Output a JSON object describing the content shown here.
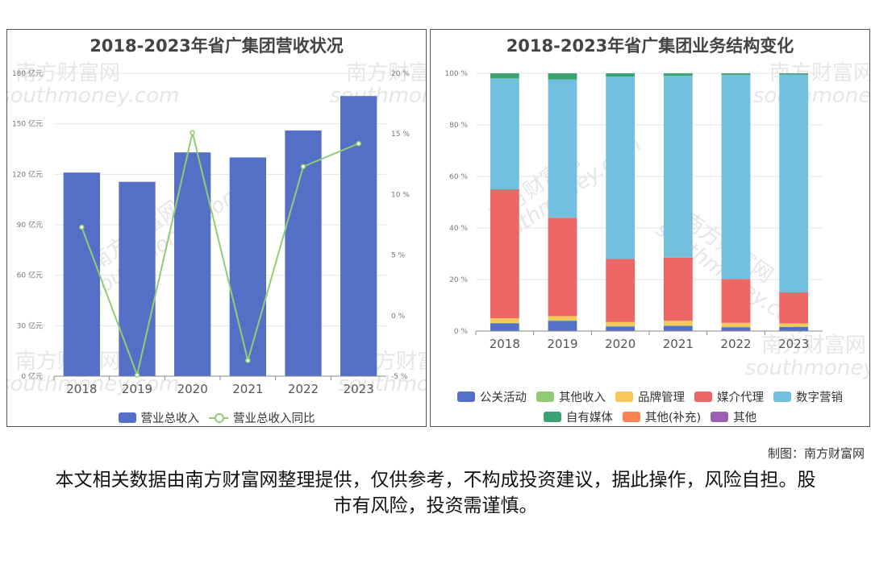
{
  "watermark": {
    "cn": "南方财富网",
    "en": "southmoney.com"
  },
  "credit": "制图：南方财富网",
  "disclaimer": "本文相关数据由南方财富网整理提供，仅供参考，不构成投资建议，据此操作，风险自担。股市有风险，投资需谨慎。",
  "chart_data": [
    {
      "type": "bar",
      "title": "2018-2023年省广集团营收状况",
      "categories": [
        "2018",
        "2019",
        "2020",
        "2021",
        "2022",
        "2023"
      ],
      "series": [
        {
          "name": "营业总收入",
          "type": "bar",
          "axis": "left",
          "color": "#5470c6",
          "values": [
            121,
            115.5,
            133,
            130,
            146,
            166.5
          ]
        },
        {
          "name": "营业总收入同比",
          "type": "line",
          "axis": "right",
          "color": "#91cc75",
          "values": [
            7.3,
            -4.9,
            15.1,
            -3.7,
            12.3,
            14.2
          ]
        }
      ],
      "y_left": {
        "min": 0,
        "max": 180,
        "ticks": [
          0,
          30,
          60,
          90,
          120,
          150,
          180
        ],
        "unit": "亿元"
      },
      "y_right": {
        "min": -5,
        "max": 20,
        "ticks": [
          -5,
          0,
          5,
          10,
          15,
          20
        ],
        "unit": "%"
      },
      "grid": true,
      "legend": "bottom"
    },
    {
      "type": "bar",
      "stacked": true,
      "title": "2018-2023年省广集团业务结构变化",
      "categories": [
        "2018",
        "2019",
        "2020",
        "2021",
        "2022",
        "2023"
      ],
      "series": [
        {
          "name": "公关活动",
          "color": "#5470c6",
          "values": [
            3,
            4,
            1.8,
            2,
            1.5,
            1.6
          ]
        },
        {
          "name": "其他收入",
          "color": "#91cc75",
          "values": [
            0.2,
            0.3,
            0.2,
            0.2,
            0.2,
            0.2
          ]
        },
        {
          "name": "品牌管理",
          "color": "#fac858",
          "values": [
            1.8,
            1.5,
            1.5,
            1.8,
            1.5,
            1.2
          ]
        },
        {
          "name": "媒介代理",
          "color": "#ee6666",
          "values": [
            50,
            38.2,
            24.5,
            24.5,
            17,
            12
          ]
        },
        {
          "name": "数字营销",
          "color": "#73c0de",
          "values": [
            43,
            53.6,
            70.7,
            70.5,
            79.2,
            84.5
          ]
        },
        {
          "name": "自有媒体",
          "color": "#3ba272",
          "values": [
            2,
            2.4,
            1.3,
            1,
            0.6,
            0.5
          ]
        },
        {
          "name": "其他(补充)",
          "color": "#fc8452",
          "values": [
            0,
            0,
            0,
            0,
            0,
            0
          ]
        },
        {
          "name": "其他",
          "color": "#9a60b4",
          "values": [
            0,
            0,
            0,
            0,
            0,
            0
          ]
        }
      ],
      "y": {
        "min": 0,
        "max": 100,
        "ticks": [
          0,
          20,
          40,
          60,
          80,
          100
        ],
        "unit": "%"
      },
      "grid": true,
      "legend": "bottom"
    }
  ]
}
